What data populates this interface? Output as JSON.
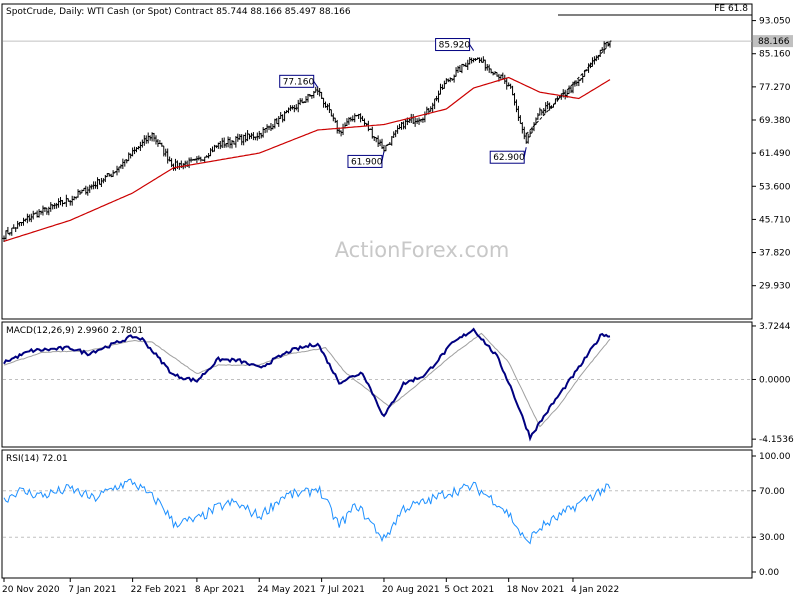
{
  "chart_data": [
    {
      "type": "candlestick",
      "title": "SpotCrude, Daily:  WTI Cash (or Spot) Contract  85.744 88.166 85.497 88.166",
      "ylim": [
        22,
        97
      ],
      "y_ticks": [
        "93.050",
        "85.160",
        "77.270",
        "69.380",
        "61.490",
        "53.600",
        "45.710",
        "37.820",
        "29.930"
      ],
      "last_price_label": "88.166",
      "last_price": 88.166,
      "fe_label": "FE 61.8",
      "fe_level": 95.8,
      "watermark": "ActionForex.com",
      "price_annotations": [
        {
          "label": "77.160",
          "date": "2021-07-05",
          "value": 77.16
        },
        {
          "label": "61.900",
          "date": "2021-08-20",
          "value": 61.9
        },
        {
          "label": "85.920",
          "date": "2021-10-25",
          "value": 85.92
        },
        {
          "label": "62.900",
          "date": "2021-12-01",
          "value": 62.9
        }
      ],
      "price_anchors": [
        [
          "2020-11-20",
          42.0
        ],
        [
          "2020-12-10",
          46.5
        ],
        [
          "2021-01-07",
          50.5
        ],
        [
          "2021-02-05",
          56.5
        ],
        [
          "2021-02-22",
          61.5
        ],
        [
          "2021-03-08",
          66.0
        ],
        [
          "2021-03-23",
          58.5
        ],
        [
          "2021-04-08",
          59.5
        ],
        [
          "2021-04-25",
          63.5
        ],
        [
          "2021-05-24",
          66.0
        ],
        [
          "2021-06-10",
          70.5
        ],
        [
          "2021-07-05",
          76.5
        ],
        [
          "2021-07-20",
          66.5
        ],
        [
          "2021-08-02",
          71.0
        ],
        [
          "2021-08-20",
          62.5
        ],
        [
          "2021-09-05",
          68.5
        ],
        [
          "2021-09-20",
          70.5
        ],
        [
          "2021-10-05",
          78.5
        ],
        [
          "2021-10-25",
          84.5
        ],
        [
          "2021-11-10",
          80.5
        ],
        [
          "2021-11-20",
          76.5
        ],
        [
          "2021-12-01",
          64.0
        ],
        [
          "2021-12-12",
          71.0
        ],
        [
          "2021-12-25",
          74.5
        ],
        [
          "2022-01-07",
          78.5
        ],
        [
          "2022-01-25",
          86.5
        ],
        [
          "2022-01-31",
          88.17
        ]
      ],
      "ma_anchors": [
        [
          "2020-11-20",
          40.5
        ],
        [
          "2021-01-07",
          45.5
        ],
        [
          "2021-02-22",
          52.0
        ],
        [
          "2021-03-23",
          58.0
        ],
        [
          "2021-05-24",
          61.5
        ],
        [
          "2021-07-05",
          67.0
        ],
        [
          "2021-08-20",
          68.3
        ],
        [
          "2021-10-05",
          72.0
        ],
        [
          "2021-10-25",
          77.0
        ],
        [
          "2021-11-18",
          79.5
        ],
        [
          "2021-12-12",
          76.0
        ],
        [
          "2022-01-07",
          74.5
        ],
        [
          "2022-01-31",
          79.0
        ]
      ],
      "trendline": [
        [
          "2021-12-01",
          66.0
        ],
        [
          "2022-01-31",
          87.5
        ]
      ],
      "colors": {
        "price": "#000000",
        "moving_average": "#cc0000",
        "trendline": "#000000"
      }
    },
    {
      "type": "line",
      "title": "MACD(12,26,9) 2.9960 2.7801",
      "ylim": [
        -4.7,
        4.0
      ],
      "y_ticks": [
        3.7244,
        0.0,
        -4.1536
      ],
      "y_tick_labels": [
        "3.7244",
        "0.0000",
        "-4.1536"
      ],
      "series": [
        {
          "name": "MACD",
          "color": "#000080",
          "anchors": [
            [
              "2020-11-20",
              1.2
            ],
            [
              "2020-12-10",
              2.0
            ],
            [
              "2021-01-07",
              2.2
            ],
            [
              "2021-01-20",
              1.8
            ],
            [
              "2021-02-05",
              2.4
            ],
            [
              "2021-02-22",
              3.0
            ],
            [
              "2021-03-01",
              2.8
            ],
            [
              "2021-03-23",
              0.3
            ],
            [
              "2021-04-08",
              -0.1
            ],
            [
              "2021-04-25",
              1.4
            ],
            [
              "2021-05-10",
              1.3
            ],
            [
              "2021-05-24",
              0.8
            ],
            [
              "2021-06-15",
              2.0
            ],
            [
              "2021-07-05",
              2.5
            ],
            [
              "2021-07-20",
              -0.2
            ],
            [
              "2021-08-05",
              0.5
            ],
            [
              "2021-08-20",
              -2.6
            ],
            [
              "2021-09-05",
              -0.3
            ],
            [
              "2021-09-20",
              0.3
            ],
            [
              "2021-10-10",
              2.5
            ],
            [
              "2021-10-25",
              3.5
            ],
            [
              "2021-11-10",
              1.6
            ],
            [
              "2021-11-20",
              -0.5
            ],
            [
              "2021-12-05",
              -4.0
            ],
            [
              "2021-12-20",
              -1.8
            ],
            [
              "2022-01-07",
              0.8
            ],
            [
              "2022-01-25",
              3.2
            ],
            [
              "2022-01-31",
              3.0
            ]
          ]
        },
        {
          "name": "Signal",
          "color": "#a0a0a0",
          "anchors": [
            [
              "2020-11-20",
              1.0
            ],
            [
              "2020-12-20",
              1.9
            ],
            [
              "2021-01-20",
              2.0
            ],
            [
              "2021-02-22",
              2.7
            ],
            [
              "2021-03-08",
              2.6
            ],
            [
              "2021-04-08",
              0.4
            ],
            [
              "2021-04-25",
              1.0
            ],
            [
              "2021-05-24",
              1.0
            ],
            [
              "2021-06-15",
              1.8
            ],
            [
              "2021-07-10",
              2.2
            ],
            [
              "2021-07-25",
              0.5
            ],
            [
              "2021-08-25",
              -1.9
            ],
            [
              "2021-09-10",
              -0.6
            ],
            [
              "2021-10-10",
              1.7
            ],
            [
              "2021-10-30",
              3.2
            ],
            [
              "2021-11-18",
              1.2
            ],
            [
              "2021-12-10",
              -3.3
            ],
            [
              "2021-12-25",
              -1.8
            ],
            [
              "2022-01-10",
              0.3
            ],
            [
              "2022-01-31",
              2.8
            ]
          ]
        }
      ]
    },
    {
      "type": "line",
      "title": "RSI(14) 72.01",
      "ylim": [
        0,
        100
      ],
      "y_ticks": [
        100,
        70,
        30,
        0
      ],
      "y_tick_labels": [
        "100.00",
        "70.00",
        "30.00",
        "0.00"
      ],
      "reference_levels": [
        70,
        30
      ],
      "series": [
        {
          "name": "RSI(14)",
          "color": "#1e90ff",
          "anchors": [
            [
              "2020-11-20",
              62
            ],
            [
              "2020-12-01",
              70
            ],
            [
              "2020-12-20",
              66
            ],
            [
              "2021-01-07",
              72
            ],
            [
              "2021-01-25",
              63
            ],
            [
              "2021-02-10",
              74
            ],
            [
              "2021-02-22",
              78
            ],
            [
              "2021-03-01",
              71
            ],
            [
              "2021-03-15",
              58
            ],
            [
              "2021-03-23",
              42
            ],
            [
              "2021-04-08",
              45
            ],
            [
              "2021-04-25",
              56
            ],
            [
              "2021-05-05",
              60
            ],
            [
              "2021-05-24",
              48
            ],
            [
              "2021-06-10",
              66
            ],
            [
              "2021-06-25",
              68
            ],
            [
              "2021-07-05",
              73
            ],
            [
              "2021-07-20",
              40
            ],
            [
              "2021-08-02",
              58
            ],
            [
              "2021-08-20",
              28
            ],
            [
              "2021-09-05",
              55
            ],
            [
              "2021-09-20",
              60
            ],
            [
              "2021-10-05",
              68
            ],
            [
              "2021-10-25",
              74
            ],
            [
              "2021-11-10",
              60
            ],
            [
              "2021-11-20",
              48
            ],
            [
              "2021-12-01",
              25
            ],
            [
              "2021-12-10",
              38
            ],
            [
              "2021-12-25",
              48
            ],
            [
              "2022-01-10",
              60
            ],
            [
              "2022-01-25",
              71
            ],
            [
              "2022-01-31",
              72
            ]
          ]
        }
      ]
    }
  ],
  "x_axis": {
    "ticks": [
      {
        "label": "20 Nov 2020",
        "date": "2020-11-20"
      },
      {
        "label": "7 Jan 2021",
        "date": "2021-01-07"
      },
      {
        "label": "22 Feb 2021",
        "date": "2021-02-22"
      },
      {
        "label": "8 Apr 2021",
        "date": "2021-04-08"
      },
      {
        "label": "24 May 2021",
        "date": "2021-05-24"
      },
      {
        "label": "7 Jul 2021",
        "date": "2021-07-07"
      },
      {
        "label": "20 Aug 2021",
        "date": "2021-08-20"
      },
      {
        "label": "5 Oct 2021",
        "date": "2021-10-05"
      },
      {
        "label": "18 Nov 2021",
        "date": "2021-11-18"
      },
      {
        "label": "4 Jan 2022",
        "date": "2022-01-04"
      }
    ],
    "end_date": "2022-01-31"
  }
}
